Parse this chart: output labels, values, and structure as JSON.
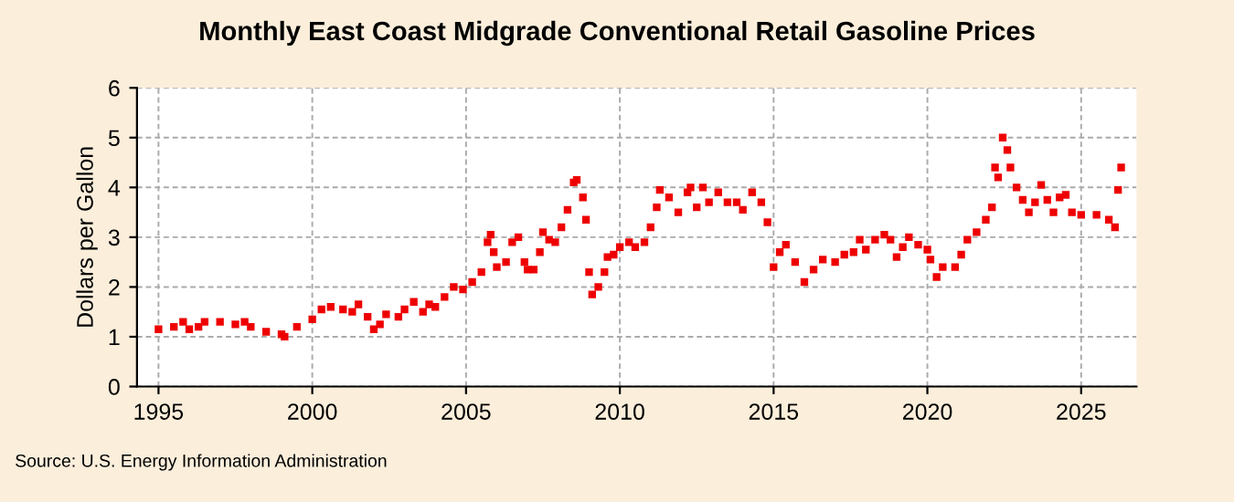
{
  "chart_data": {
    "type": "scatter",
    "title": "Monthly East Coast Midgrade Conventional Retail Gasoline Prices",
    "ylabel": "Dollars per Gallon",
    "annotations": [
      "Source: U.S. Energy Information Administration"
    ],
    "x": [
      1995.0,
      1995.5,
      1995.8,
      1996.0,
      1996.3,
      1996.5,
      1997.0,
      1997.5,
      1997.8,
      1998.0,
      1998.5,
      1999.0,
      1999.1,
      1999.5,
      2000.0,
      2000.3,
      2000.6,
      2001.0,
      2001.3,
      2001.5,
      2001.8,
      2002.0,
      2002.2,
      2002.4,
      2002.8,
      2003.0,
      2003.3,
      2003.6,
      2003.8,
      2004.0,
      2004.3,
      2004.6,
      2004.9,
      2005.2,
      2005.5,
      2005.7,
      2005.8,
      2005.9,
      2006.0,
      2006.3,
      2006.5,
      2006.7,
      2006.9,
      2007.0,
      2007.2,
      2007.4,
      2007.5,
      2007.7,
      2007.9,
      2008.1,
      2008.3,
      2008.5,
      2008.6,
      2008.8,
      2008.9,
      2009.0,
      2009.1,
      2009.3,
      2009.5,
      2009.6,
      2009.8,
      2010.0,
      2010.3,
      2010.5,
      2010.8,
      2011.0,
      2011.2,
      2011.3,
      2011.6,
      2011.9,
      2012.2,
      2012.3,
      2012.5,
      2012.7,
      2012.9,
      2013.2,
      2013.5,
      2013.8,
      2014.0,
      2014.3,
      2014.6,
      2014.8,
      2015.0,
      2015.2,
      2015.4,
      2015.7,
      2016.0,
      2016.3,
      2016.6,
      2017.0,
      2017.3,
      2017.6,
      2017.8,
      2018.0,
      2018.3,
      2018.6,
      2018.8,
      2019.0,
      2019.2,
      2019.4,
      2019.7,
      2020.0,
      2020.1,
      2020.3,
      2020.5,
      2020.9,
      2021.1,
      2021.3,
      2021.6,
      2021.9,
      2022.1,
      2022.2,
      2022.3,
      2022.45,
      2022.6,
      2022.7,
      2022.9,
      2023.1,
      2023.3,
      2023.5,
      2023.7,
      2023.9,
      2024.1,
      2024.3,
      2024.5,
      2024.7,
      2025.0,
      2025.5,
      2025.9,
      2026.1,
      2026.2,
      2026.3
    ],
    "series": [
      {
        "color": "#ee0000",
        "values": [
          1.15,
          1.2,
          1.3,
          1.15,
          1.2,
          1.3,
          1.3,
          1.25,
          1.3,
          1.2,
          1.1,
          1.05,
          1.0,
          1.2,
          1.35,
          1.55,
          1.6,
          1.55,
          1.5,
          1.65,
          1.4,
          1.15,
          1.25,
          1.45,
          1.4,
          1.55,
          1.7,
          1.5,
          1.65,
          1.6,
          1.8,
          2.0,
          1.95,
          2.1,
          2.3,
          2.9,
          3.05,
          2.7,
          2.4,
          2.5,
          2.9,
          3.0,
          2.5,
          2.35,
          2.35,
          2.7,
          3.1,
          2.95,
          2.9,
          3.2,
          3.55,
          4.1,
          4.15,
          3.8,
          3.35,
          2.3,
          1.85,
          2.0,
          2.3,
          2.6,
          2.65,
          2.8,
          2.9,
          2.8,
          2.9,
          3.2,
          3.6,
          3.95,
          3.8,
          3.5,
          3.9,
          4.0,
          3.6,
          4.0,
          3.7,
          3.9,
          3.7,
          3.7,
          3.55,
          3.9,
          3.7,
          3.3,
          2.4,
          2.7,
          2.85,
          2.5,
          2.1,
          2.35,
          2.55,
          2.5,
          2.65,
          2.7,
          2.95,
          2.75,
          2.95,
          3.05,
          2.95,
          2.6,
          2.8,
          3.0,
          2.85,
          2.75,
          2.55,
          2.2,
          2.4,
          2.4,
          2.65,
          2.95,
          3.1,
          3.35,
          3.6,
          4.4,
          4.2,
          5.0,
          4.75,
          4.4,
          4.0,
          3.75,
          3.5,
          3.7,
          4.05,
          3.75,
          3.5,
          3.8,
          3.85,
          3.5,
          3.45,
          3.45,
          3.35,
          3.2,
          3.95,
          4.4
        ]
      }
    ],
    "xlim": [
      1994.3,
      2026.8
    ],
    "ylim": [
      0,
      6
    ],
    "xticks": [
      1995,
      2000,
      2005,
      2010,
      2015,
      2020,
      2025
    ],
    "yticks": [
      0,
      1,
      2,
      3,
      4,
      5,
      6
    ],
    "grid": true,
    "marker": "square"
  }
}
